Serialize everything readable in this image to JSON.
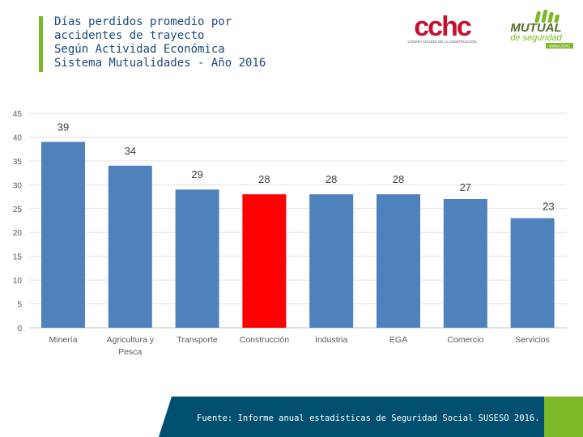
{
  "header": {
    "title_lines": [
      "Días perdidos promedio por",
      "accidentes de trayecto",
      "Según Actividad Económica",
      "Sistema Mutualidades - Año 2016"
    ]
  },
  "logos": {
    "cchc": {
      "text": "cchc",
      "subtext": "CÁMARA CHILENA DE LA CONSTRUCCIÓN",
      "color": "#c8102e"
    },
    "mutual": {
      "text_top": "MUTUAL",
      "text_bottom": "de seguridad",
      "tag": "www.CChC",
      "color": "#7cb928"
    }
  },
  "chart_data": {
    "type": "bar",
    "title": "",
    "xlabel": "",
    "ylabel": "",
    "categories": [
      "Minería",
      "Agricultura y Pesca",
      "Transporte",
      "Construcción",
      "Industria",
      "EGA",
      "Comercio",
      "Servicios"
    ],
    "category_lines": [
      [
        "Minería"
      ],
      [
        "Agricultura y",
        "Pesca"
      ],
      [
        "Transporte"
      ],
      [
        "Construcción"
      ],
      [
        "Industria"
      ],
      [
        "EGA"
      ],
      [
        "Comercio"
      ],
      [
        "Servicios"
      ]
    ],
    "values": [
      39,
      34,
      29,
      28,
      28,
      28,
      27,
      23
    ],
    "ylim": [
      0,
      45
    ],
    "yticks": [
      0,
      5,
      10,
      15,
      20,
      25,
      30,
      35,
      40,
      45
    ],
    "grid": true,
    "bar_color": "#4f81bd",
    "highlight_index": 3,
    "highlight_color": "#ff0000"
  },
  "footer": {
    "source": "Fuente: Informe anual estadísticas de Seguridad Social SUSESO 2016.",
    "bg_color": "#004f6e",
    "accent_color": "#7cb928"
  }
}
